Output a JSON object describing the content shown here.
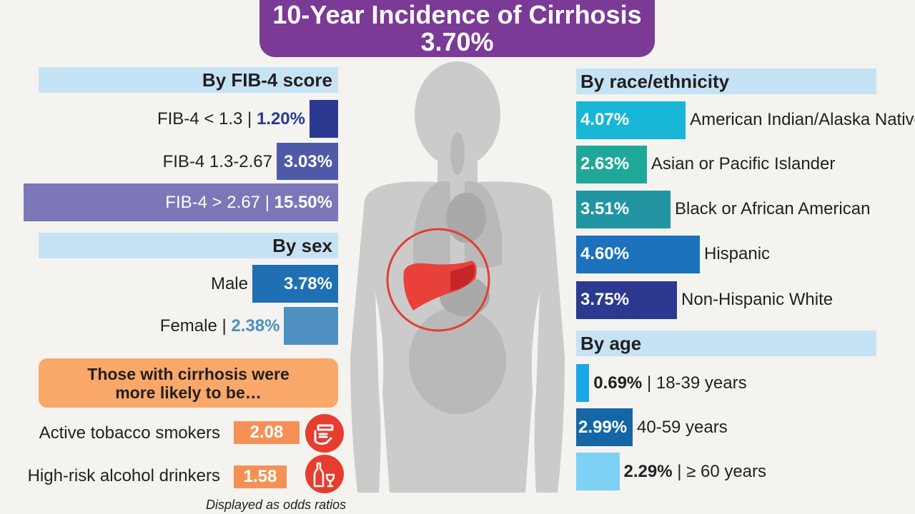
{
  "title": {
    "line1": "10-Year Incidence of Cirrhosis",
    "line2": "3.70%"
  },
  "sections": {
    "fib4": "By FIB-4 score",
    "sex": "By sex",
    "race": "By race/ethnicity",
    "age": "By age"
  },
  "chart_data": [
    {
      "type": "bar",
      "title": "By FIB-4 score",
      "categories": [
        "FIB-4 < 1.3",
        "FIB-4 1.3-2.67",
        "FIB-4 > 2.67"
      ],
      "values": [
        1.2,
        3.03,
        15.5
      ],
      "value_labels": [
        "1.20%",
        "3.03%",
        "15.50%"
      ],
      "colors": [
        "#2b3990",
        "#4e5aa8",
        "#7b77b8"
      ]
    },
    {
      "type": "bar",
      "title": "By sex",
      "categories": [
        "Male",
        "Female"
      ],
      "values": [
        3.78,
        2.38
      ],
      "value_labels": [
        "3.78%",
        "2.38%"
      ],
      "colors": [
        "#1f6fb5",
        "#4e90c2"
      ]
    },
    {
      "type": "bar",
      "title": "By race/ethnicity",
      "categories": [
        "American Indian/Alaska Native",
        "Asian or Pacific Islander",
        "Black or African American",
        "Hispanic",
        "Non-Hispanic White"
      ],
      "values": [
        4.07,
        2.63,
        3.51,
        4.6,
        3.75
      ],
      "value_labels": [
        "4.07%",
        "2.63%",
        "3.51%",
        "4.60%",
        "3.75%"
      ],
      "colors": [
        "#18b6d6",
        "#1fa89a",
        "#2196a2",
        "#1d72bd",
        "#2b3990"
      ]
    },
    {
      "type": "bar",
      "title": "By age",
      "categories": [
        "18-39 years",
        "40-59 years",
        "≥ 60 years"
      ],
      "values": [
        0.69,
        2.99,
        2.29
      ],
      "value_labels": [
        "0.69%",
        "2.99%",
        "2.29%"
      ],
      "colors": [
        "#1aa7e8",
        "#1466a6",
        "#7fd0f5"
      ]
    }
  ],
  "odds": {
    "heading": "Those with cirrhosis were more likely to be…",
    "items": [
      {
        "label": "Active tobacco smokers",
        "value": "2.08",
        "icon": "cigarette-icon"
      },
      {
        "label": "High-risk alcohol drinkers",
        "value": "1.58",
        "icon": "alcohol-icon"
      }
    ],
    "note": "Displayed as odds ratios"
  },
  "colors": {
    "title_bg": "#7b3a96",
    "header_bg": "#c5e3f5",
    "orange_box": "#f9a86a",
    "odds_badge": "#f59156",
    "icon_red": "#e63d2f",
    "liver": "#e8413a"
  }
}
